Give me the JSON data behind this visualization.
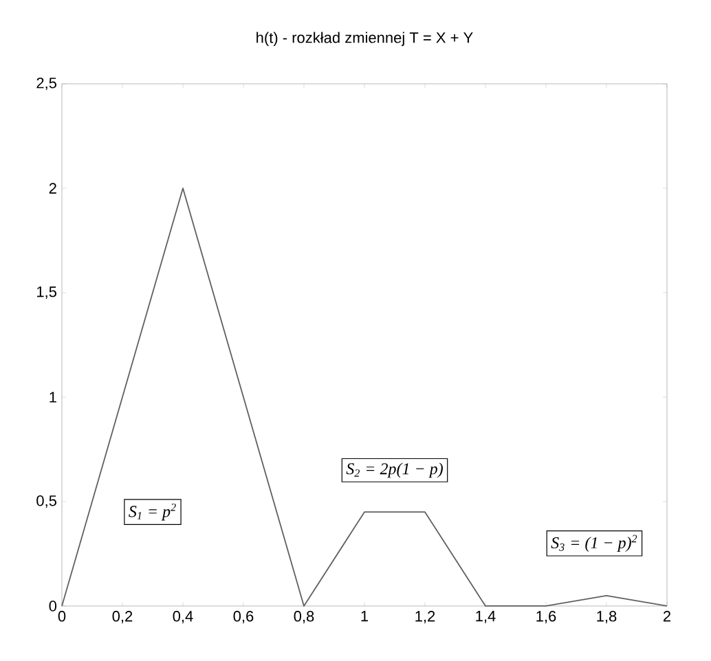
{
  "chart_data": {
    "type": "line",
    "title": "h(t) - rozkład zmiennej T = X + Y",
    "x": [
      0,
      0.4,
      0.8,
      1.0,
      1.2,
      1.4,
      1.6,
      1.8,
      2.0
    ],
    "values": [
      0,
      2,
      0,
      0.45,
      0.45,
      0,
      0,
      0.05,
      0
    ],
    "color": "#606060",
    "xlim": [
      0,
      2
    ],
    "ylim": [
      0,
      2.5
    ],
    "xticks": [
      0,
      {
        "value": 0.2,
        "label": "0,2"
      },
      {
        "value": 0.4,
        "label": "0,4"
      },
      {
        "value": 0.6,
        "label": "0,6"
      },
      {
        "value": 0.8,
        "label": "0,8"
      },
      1,
      {
        "value": 1.2,
        "label": "1,2"
      },
      {
        "value": 1.4,
        "label": "1,4"
      },
      {
        "value": 1.6,
        "label": "1,6"
      },
      {
        "value": 1.8,
        "label": "1,8"
      },
      2
    ],
    "yticks": [
      0,
      {
        "value": 0.5,
        "label": "0,5"
      },
      1,
      {
        "value": 1.5,
        "label": "1,5"
      },
      2,
      {
        "value": 2.5,
        "label": "2,5"
      }
    ],
    "annotations": [
      "S$_{1}$ = p$^{2}$",
      "S$_{2}$ = 2p(1 − p)",
      "S$_{3}$ = (1 − p)$^{2}$"
    ],
    "grid": false,
    "marker": "none",
    "line_style": "solid"
  }
}
